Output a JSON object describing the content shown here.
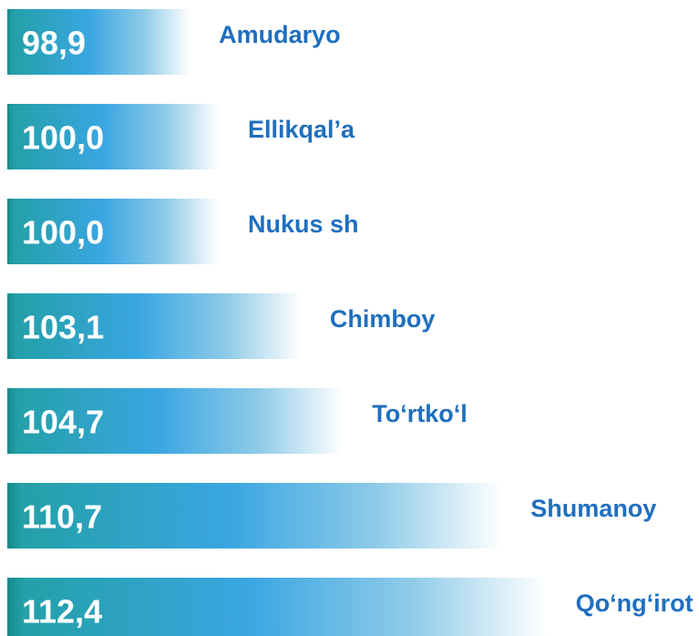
{
  "chart_data": {
    "type": "barh",
    "categories": [
      "Amudaryo",
      "Ellikqal’a",
      "Nukus sh",
      "Chimboy",
      "To‘rtko‘l",
      "Shumanoy",
      "Qo‘ng‘irot"
    ],
    "values": [
      98.9,
      100.0,
      100.0,
      103.1,
      104.7,
      110.7,
      112.4
    ],
    "value_labels": [
      "98,9",
      "100,0",
      "100,0",
      "103,1",
      "104,7",
      "110,7",
      "112,4"
    ],
    "xlim": [
      92,
      113
    ],
    "color": "#2fa0d8"
  }
}
